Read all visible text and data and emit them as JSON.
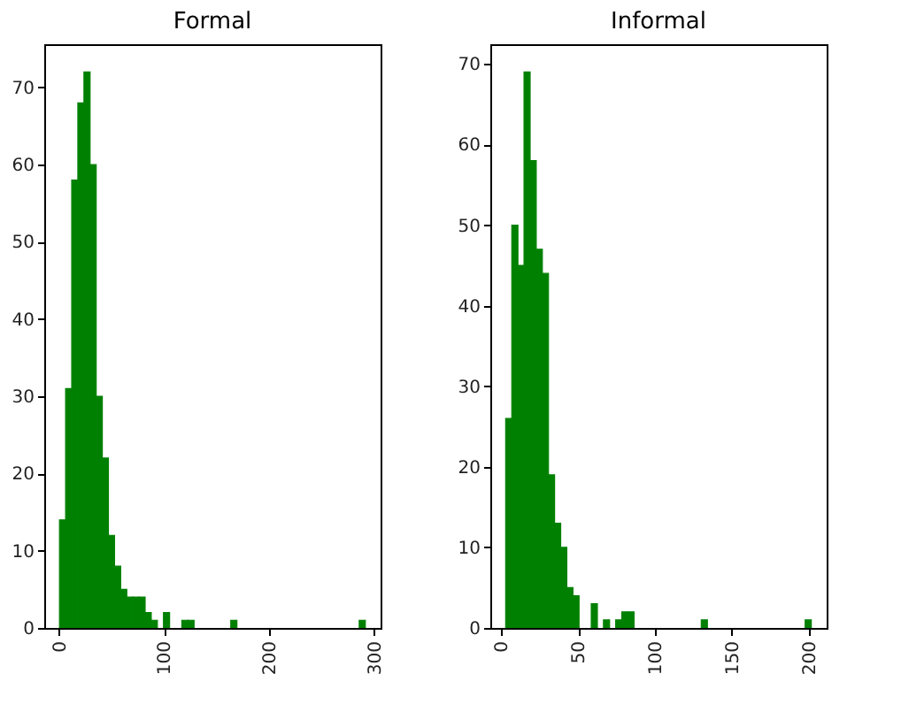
{
  "chart_data": [
    {
      "type": "histogram",
      "title": "Formal",
      "color": "#008000",
      "bins": [
        0.5,
        6.32,
        12.14,
        17.96,
        23.78,
        29.6,
        35.42,
        41.24,
        47.06,
        52.88,
        58.7,
        64.52,
        70.34,
        76.16,
        81.98,
        87.8,
        93.62,
        99.44,
        105.26,
        111.08,
        116.9,
        122.72,
        128.54,
        134.36,
        140.18,
        146.0,
        151.82,
        157.64,
        163.46,
        169.28,
        175.1,
        180.92,
        186.74,
        192.56,
        198.38,
        204.2,
        210.02,
        215.84,
        221.66,
        227.48,
        233.3,
        239.12,
        244.94,
        250.76,
        256.58,
        262.4,
        268.22,
        274.04,
        279.86,
        285.68,
        291.5
      ],
      "values": [
        14,
        31,
        58,
        68,
        72,
        60,
        30,
        22,
        12,
        8,
        5,
        4,
        4,
        4,
        2,
        1,
        0,
        2,
        0,
        0,
        1,
        1,
        0,
        0,
        0,
        0,
        0,
        0,
        1,
        0,
        0,
        0,
        0,
        0,
        0,
        0,
        0,
        0,
        0,
        0,
        0,
        0,
        0,
        0,
        0,
        0,
        0,
        0,
        0,
        1
      ],
      "xlim": [
        -14,
        306
      ],
      "xticks": [
        0,
        100,
        200,
        300
      ],
      "ylim": [
        0,
        75.6
      ],
      "yticks": [
        0,
        10,
        20,
        30,
        40,
        50,
        60,
        70
      ]
    },
    {
      "type": "histogram",
      "title": "Informal",
      "color": "#008000",
      "bins": [
        2.8,
        6.78,
        10.76,
        14.74,
        18.72,
        22.7,
        26.68,
        30.66,
        34.64,
        38.62,
        42.6,
        46.58,
        50.56,
        54.54,
        58.52,
        62.5,
        66.48,
        70.46,
        74.44,
        78.42,
        82.4,
        86.38,
        90.36,
        94.34,
        98.32,
        102.3,
        106.28,
        110.26,
        114.24,
        118.22,
        122.2,
        126.18,
        130.16,
        134.14,
        138.12,
        142.1,
        146.08,
        150.06,
        154.04,
        158.02,
        162.0,
        165.98,
        169.96,
        173.94,
        177.92,
        181.9,
        185.88,
        189.86,
        193.84,
        197.82,
        201.8
      ],
      "values": [
        26,
        50,
        45,
        69,
        58,
        47,
        44,
        19,
        13,
        10,
        5,
        4,
        0,
        0,
        3,
        0,
        1,
        0,
        1,
        2,
        2,
        0,
        0,
        0,
        0,
        0,
        0,
        0,
        0,
        0,
        0,
        0,
        1,
        0,
        0,
        0,
        0,
        0,
        0,
        0,
        0,
        0,
        0,
        0,
        0,
        0,
        0,
        0,
        0,
        1
      ],
      "xlim": [
        -7.2,
        211.8
      ],
      "xticks": [
        0,
        50,
        100,
        150,
        200
      ],
      "ylim": [
        0,
        72.45
      ],
      "yticks": [
        0,
        10,
        20,
        30,
        40,
        50,
        60,
        70
      ]
    }
  ]
}
